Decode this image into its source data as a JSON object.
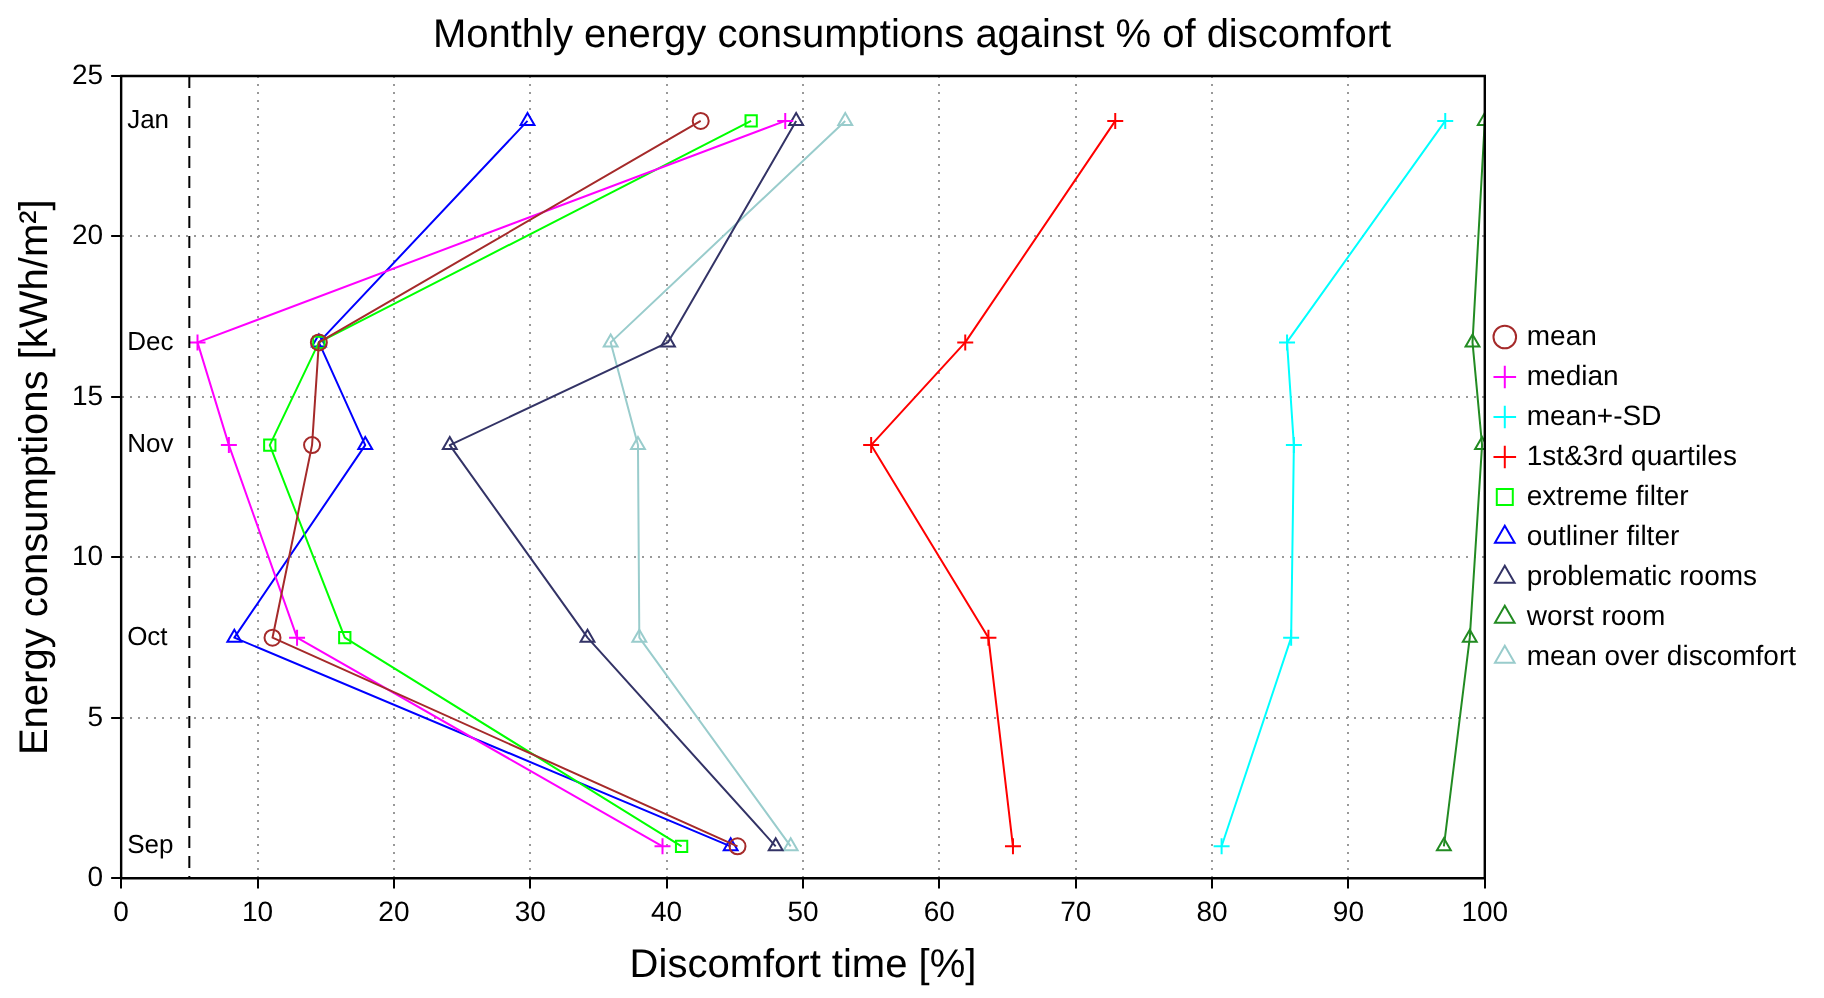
{
  "chart_data": {
    "type": "line",
    "title": "Monthly energy consumptions against % of discomfort",
    "xlabel": "Discomfort time [%]",
    "ylabel": "Energy consumptions [kWh/m²]",
    "xlim": [
      0,
      100
    ],
    "xticks": [
      0,
      10,
      20,
      30,
      40,
      50,
      60,
      70,
      80,
      90,
      100
    ],
    "ylim": [
      0,
      25
    ],
    "yticks": [
      0,
      5,
      10,
      15,
      20,
      25
    ],
    "grid": true,
    "legend": "right",
    "line_style": "solid",
    "ref_lines": [
      {
        "axis": "x",
        "value": 5,
        "color": "#000000",
        "line_style": "dashed"
      }
    ],
    "annotations": [
      "Jan",
      "Dec",
      "Nov",
      "Oct",
      "Sep"
    ],
    "series": [
      {
        "name": "mean",
        "color": "#a52a2a",
        "marker": "circle",
        "x": [
          42.5,
          14.5,
          14.0,
          11.1,
          45.2
        ],
        "values": [
          23.6,
          16.7,
          13.5,
          7.5,
          1.0
        ]
      },
      {
        "name": "median",
        "color": "#ff00ff",
        "marker": "cross",
        "x": [
          48.7,
          5.6,
          7.9,
          12.9,
          39.7
        ],
        "values": [
          23.6,
          16.7,
          13.5,
          7.5,
          1.0
        ]
      },
      {
        "name": "mean+-SD",
        "color": "#00ffff",
        "marker": "cross",
        "x": [
          97.1,
          85.5,
          86.0,
          85.8,
          80.7
        ],
        "values": [
          23.6,
          16.7,
          13.5,
          7.5,
          1.0
        ]
      },
      {
        "name": "1st&3rd quartiles",
        "color": "#ff0000",
        "marker": "cross",
        "x": [
          72.9,
          61.9,
          55.0,
          63.6,
          65.4
        ],
        "values": [
          23.6,
          16.7,
          13.5,
          7.5,
          1.0
        ]
      },
      {
        "name": "extreme filter",
        "color": "#00ff00",
        "marker": "square",
        "x": [
          46.2,
          14.5,
          10.9,
          16.4,
          41.1
        ],
        "values": [
          23.6,
          16.7,
          13.5,
          7.5,
          1.0
        ]
      },
      {
        "name": "outliner filter",
        "color": "#0000ff",
        "marker": "triangle",
        "x": [
          29.8,
          14.5,
          17.9,
          8.3,
          44.7
        ],
        "values": [
          23.6,
          16.7,
          13.5,
          7.5,
          1.0
        ]
      },
      {
        "name": "problematic rooms",
        "color": "#333366",
        "marker": "triangle",
        "x": [
          49.5,
          40.1,
          24.1,
          34.2,
          48.0
        ],
        "values": [
          23.6,
          16.7,
          13.5,
          7.5,
          1.0
        ]
      },
      {
        "name": "worst room",
        "color": "#228b22",
        "marker": "triangle",
        "x": [
          100,
          99.1,
          99.8,
          98.9,
          97.0
        ],
        "values": [
          23.6,
          16.7,
          13.5,
          7.5,
          1.0
        ]
      },
      {
        "name": "mean over discomfort",
        "color": "#99cccc",
        "marker": "triangle",
        "x": [
          53.1,
          35.9,
          37.9,
          38.0,
          49.1
        ],
        "values": [
          23.6,
          16.7,
          13.5,
          7.5,
          1.0
        ]
      }
    ]
  }
}
